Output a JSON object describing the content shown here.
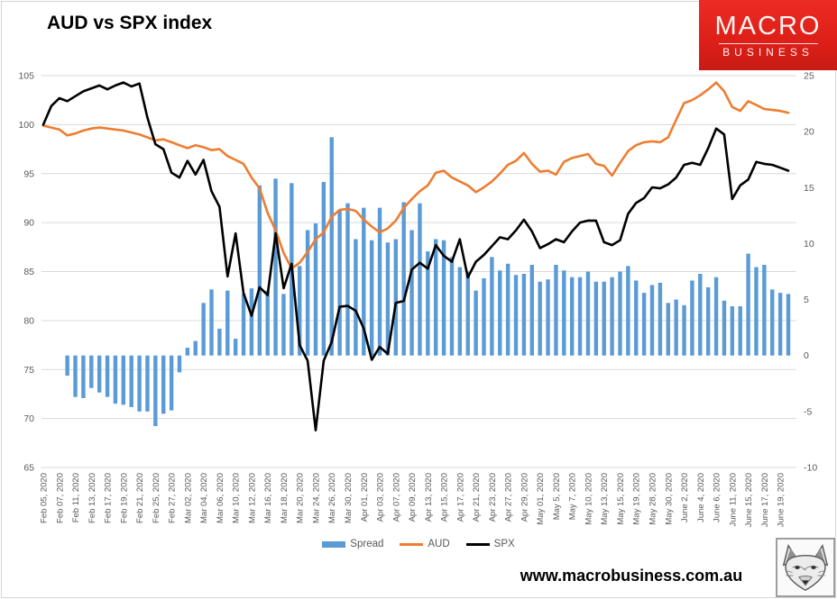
{
  "header": {
    "title": "AUD vs SPX index",
    "logo": {
      "line1": "MACRO",
      "line2": "BUSINESS",
      "bg_color": "#dd1f18",
      "text_color": "#ffffff"
    }
  },
  "footer": {
    "website": "www.macrobusiness.com.au"
  },
  "legend": [
    {
      "label": "Spread",
      "color": "#5B9BD5",
      "type": "bar"
    },
    {
      "label": "AUD",
      "color": "#ED7D31",
      "type": "line"
    },
    {
      "label": "SPX",
      "color": "#000000",
      "type": "line"
    }
  ],
  "colors": {
    "grid": "#d9d9d9",
    "axis_text": "#595959",
    "bar": "#5B9BD5",
    "aud": "#ED7D31",
    "spx": "#000000"
  },
  "chart_data": {
    "type": "combo",
    "title": "AUD vs SPX index",
    "xlabel": "",
    "ylabel_left": "",
    "ylabel_right": "",
    "gridlines": "horizontal",
    "legend_position": "bottom",
    "label_every": 2,
    "left_axis": {
      "min": 65,
      "max": 105,
      "ticks": [
        105,
        100,
        95,
        90,
        85,
        80,
        75,
        70,
        65
      ]
    },
    "right_axis": {
      "min": -10,
      "max": 25,
      "ticks": [
        25,
        20,
        15,
        10,
        5,
        0,
        -5,
        -10
      ]
    },
    "x_labels": [
      "Feb 05, 2020",
      "Feb 07, 2020",
      "Feb 11, 2020",
      "Feb 13, 2020",
      "Feb 17, 2020",
      "Feb 19, 2020",
      "Feb 21, 2020",
      "Feb 25, 2020",
      "Feb 27, 2020",
      "Mar 02, 2020",
      "Mar 04, 2020",
      "Mar 06, 2020",
      "Mar 10, 2020",
      "Mar 12, 2020",
      "Mar 16, 2020",
      "Mar 18, 2020",
      "Mar 20, 2020",
      "Mar 24, 2020",
      "Mar 26, 2020",
      "Mar 30, 2020",
      "Apr 01, 2020",
      "Apr 03, 2020",
      "Apr 07, 2020",
      "Apr 09, 2020",
      "Apr 13, 2020",
      "Apr 15, 2020",
      "Apr 17, 2020",
      "Apr 21, 2020",
      "Apr 23, 2020",
      "Apr 27, 2020",
      "Apr 29, 2020",
      "May 01, 2020",
      "May 5, 2020",
      "May 7, 2020",
      "May 10, 2020",
      "May 13, 2020",
      "May 15, 2020",
      "May 19, 2020",
      "May 28, 2020",
      "May 30, 2020",
      "June 2, 2020",
      "June 4, 2020",
      "June 6, 2020",
      "June 11, 2020",
      "June 15, 2020",
      "June 17, 2020",
      "June 19, 2020"
    ],
    "series": [
      {
        "name": "Spread",
        "type": "bar",
        "axis": "right",
        "color": "#5B9BD5",
        "values": [
          0,
          0,
          0,
          -1.8,
          -3.7,
          -3.8,
          -2.9,
          -3.3,
          -3.7,
          -4.3,
          -4.4,
          -4.6,
          -5.0,
          -5.0,
          -6.3,
          -5.2,
          -4.9,
          -1.5,
          0.7,
          1.3,
          4.7,
          5.9,
          2.4,
          5.8,
          1.5,
          5.5,
          6.0,
          15.2,
          5.8,
          15.8,
          5.5,
          15.4,
          8.0,
          11.2,
          11.8,
          15.5,
          19.5,
          13.0,
          13.6,
          10.4,
          13.2,
          10.3,
          13.2,
          10.1,
          10.4,
          13.7,
          11.2,
          13.6,
          9.3,
          10.4,
          10.3,
          8.8,
          7.9,
          7.5,
          5.8,
          6.9,
          8.8,
          7.6,
          8.2,
          7.2,
          7.3,
          8.1,
          6.6,
          6.8,
          8.1,
          7.6,
          7.0,
          7.0,
          7.5,
          6.6,
          6.6,
          7.0,
          7.5,
          8.0,
          6.7,
          5.6,
          6.3,
          6.5,
          4.7,
          5.0,
          4.5,
          6.7,
          7.3,
          6.1,
          7.0,
          4.9,
          4.4,
          4.4,
          9.1,
          7.9,
          8.1,
          5.9,
          5.6,
          5.5
        ]
      },
      {
        "name": "AUD",
        "type": "line",
        "axis": "left",
        "color": "#ED7D31",
        "values": [
          99.9,
          99.7,
          99.5,
          98.9,
          99.1,
          99.4,
          99.6,
          99.7,
          99.6,
          99.5,
          99.4,
          99.2,
          99.0,
          98.7,
          98.4,
          98.5,
          98.2,
          97.9,
          97.6,
          97.9,
          97.7,
          97.4,
          97.5,
          96.8,
          96.4,
          96.0,
          94.6,
          93.5,
          91.0,
          89.2,
          86.9,
          85.3,
          85.9,
          87.0,
          88.3,
          89.0,
          90.6,
          91.3,
          91.4,
          91.2,
          90.3,
          89.6,
          89.0,
          89.4,
          90.2,
          91.5,
          92.4,
          93.2,
          93.8,
          95.1,
          95.3,
          94.6,
          94.2,
          93.8,
          93.1,
          93.6,
          94.2,
          95.0,
          95.9,
          96.3,
          97.1,
          96.0,
          95.2,
          95.3,
          94.9,
          96.2,
          96.6,
          96.8,
          97.0,
          96.0,
          95.8,
          94.8,
          96.1,
          97.3,
          97.9,
          98.2,
          98.3,
          98.2,
          98.7,
          100.5,
          102.2,
          102.5,
          103.0,
          103.6,
          104.3,
          103.4,
          101.8,
          101.4,
          102.4,
          102.0,
          101.6,
          101.5,
          101.4,
          101.2
        ]
      },
      {
        "name": "SPX",
        "type": "line",
        "axis": "left",
        "color": "#000000",
        "values": [
          100.0,
          101.9,
          102.7,
          102.4,
          102.9,
          103.4,
          103.7,
          104.0,
          103.6,
          104.0,
          104.3,
          103.9,
          104.2,
          100.7,
          98.0,
          97.5,
          95.1,
          94.6,
          96.3,
          94.9,
          96.4,
          93.2,
          91.6,
          84.5,
          88.9,
          82.8,
          80.5,
          83.4,
          82.6,
          88.9,
          83.3,
          85.8,
          77.5,
          75.9,
          68.8,
          75.9,
          77.8,
          81.4,
          81.5,
          81.0,
          79.2,
          76.0,
          77.3,
          76.6,
          81.8,
          82.0,
          85.2,
          85.9,
          85.3,
          87.7,
          86.6,
          86.0,
          88.3,
          84.4,
          86.0,
          86.7,
          87.6,
          88.5,
          88.3,
          89.2,
          90.3,
          89.1,
          87.4,
          87.8,
          88.3,
          88.0,
          89.1,
          90.0,
          90.2,
          90.2,
          88.0,
          87.7,
          88.2,
          90.9,
          92.0,
          92.5,
          93.6,
          93.5,
          93.9,
          94.6,
          95.9,
          96.1,
          95.9,
          97.6,
          99.6,
          99.0,
          92.4,
          93.8,
          94.4,
          96.2,
          96.0,
          95.9,
          95.6,
          95.3
        ]
      }
    ]
  }
}
